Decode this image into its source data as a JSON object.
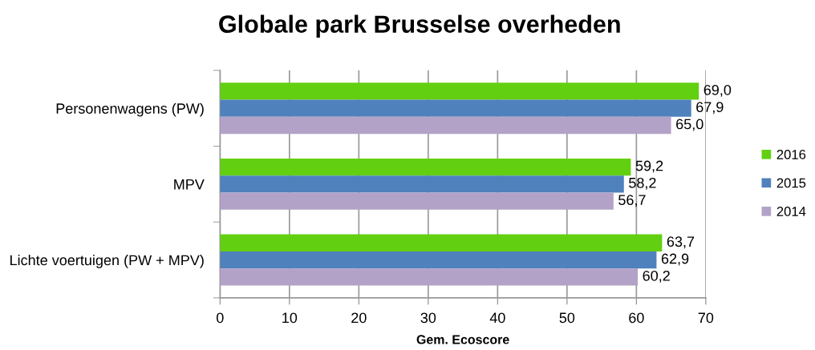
{
  "chart_data": {
    "type": "bar",
    "orientation": "horizontal",
    "title": "Globale park Brusselse overheden",
    "xlabel": "Gem. Ecoscore",
    "categories": [
      "Personenwagens (PW)",
      "MPV",
      "Lichte voertuigen (PW + MPV)"
    ],
    "series": [
      {
        "name": "2016",
        "color": "#62d010",
        "values": [
          69.0,
          59.2,
          63.7
        ],
        "value_labels": [
          "69,0",
          "59,2",
          "63,7"
        ]
      },
      {
        "name": "2015",
        "color": "#4f81bd",
        "values": [
          67.9,
          58.2,
          62.9
        ],
        "value_labels": [
          "67,9",
          "58,2",
          "62,9"
        ]
      },
      {
        "name": "2014",
        "color": "#b3a2c7",
        "values": [
          65.0,
          56.7,
          60.2
        ],
        "value_labels": [
          "65,0",
          "56,7",
          "60,2"
        ]
      }
    ],
    "xlim": [
      0,
      70
    ],
    "xticks": [
      0,
      10,
      20,
      30,
      40,
      50,
      60,
      70
    ],
    "grid": "x",
    "legend": "right"
  }
}
